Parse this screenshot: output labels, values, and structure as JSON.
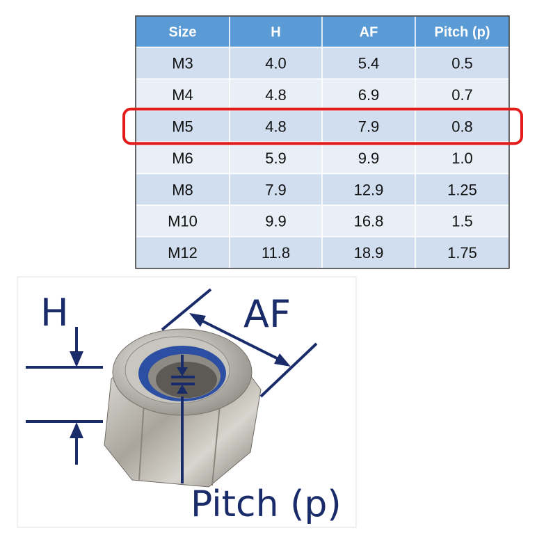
{
  "table": {
    "headers": [
      "Size",
      "H",
      "AF",
      "Pitch (p)"
    ],
    "rows": [
      [
        "M3",
        "4.0",
        "5.4",
        "0.5"
      ],
      [
        "M4",
        "4.8",
        "6.9",
        "0.7"
      ],
      [
        "M5",
        "4.8",
        "7.9",
        "0.8"
      ],
      [
        "M6",
        "5.9",
        "9.9",
        "1.0"
      ],
      [
        "M8",
        "7.9",
        "12.9",
        "1.25"
      ],
      [
        "M10",
        "9.9",
        "16.8",
        "1.5"
      ],
      [
        "M12",
        "11.8",
        "18.9",
        "1.75"
      ]
    ],
    "highlighted_row": 2
  },
  "diagram": {
    "labels": {
      "h": "H",
      "af": "AF",
      "pitch": "Pitch (p)"
    }
  }
}
